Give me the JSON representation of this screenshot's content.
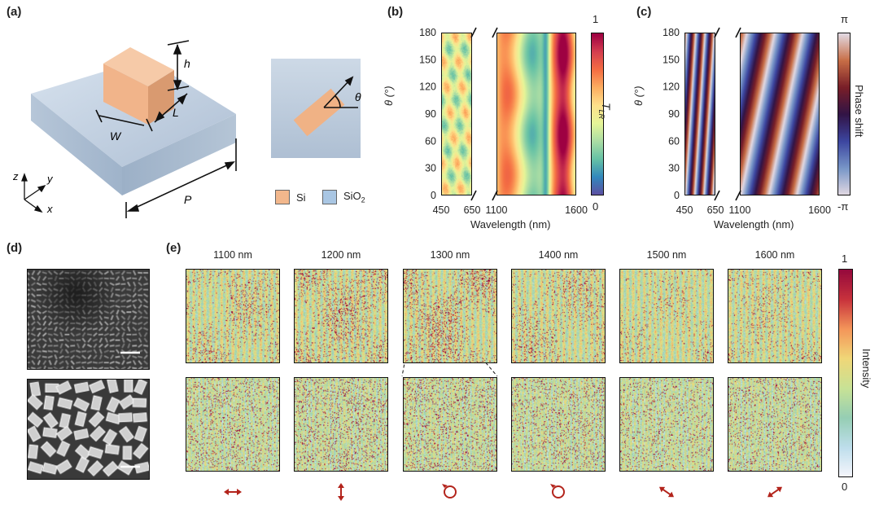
{
  "panel_labels": {
    "a": "(a)",
    "b": "(b)",
    "c": "(c)",
    "d": "(d)",
    "e": "(e)"
  },
  "schematic": {
    "dims": {
      "h": "h",
      "L": "L",
      "W": "W",
      "P": "P",
      "theta": "θ"
    },
    "axes": {
      "z": "z",
      "y": "y",
      "x": "x"
    },
    "legend": [
      {
        "label": "Si",
        "color": "#f2b78c"
      },
      {
        "label": "SiO",
        "sub": "2",
        "color": "#a9c6e3"
      }
    ]
  },
  "panel_b": {
    "ylabel": "θ (°)",
    "xlabel": "Wavelength (nm)",
    "colorbar_label": "T",
    "colorbar_sub": "LR",
    "colorbar_max": "1",
    "colorbar_min": "0"
  },
  "panel_c": {
    "ylabel": "θ (°)",
    "xlabel": "Wavelength (nm)",
    "colorbar_label": "Phase shift",
    "colorbar_max": "π",
    "colorbar_min": "-π"
  },
  "panel_e": {
    "wavelengths": [
      "1100 nm",
      "1200 nm",
      "1300 nm",
      "1400 nm",
      "1500 nm",
      "1600 nm"
    ],
    "colorbar_label": "Intensity",
    "colorbar_max": "1",
    "colorbar_min": "0",
    "polarizations": [
      "horizontal-linear",
      "vertical-linear",
      "circular",
      "circular",
      "diagonal-linear",
      "anti-diagonal-linear"
    ],
    "mark_color": "#b3241c"
  },
  "chart_data": [
    {
      "type": "heatmap",
      "title": "(b)",
      "xlabel": "Wavelength (nm)",
      "ylabel": "θ (°)",
      "colorbar": "T_LR",
      "x_ranges": [
        [
          450,
          650
        ],
        [
          1100,
          1600
        ]
      ],
      "x_ticks": [
        450,
        650,
        1100,
        1600
      ],
      "y_ticks": [
        0,
        30,
        60,
        90,
        120,
        150,
        180
      ],
      "ylim": [
        0,
        180
      ],
      "zlim": [
        0,
        1
      ]
    },
    {
      "type": "heatmap",
      "title": "(c)",
      "xlabel": "Wavelength (nm)",
      "ylabel": "θ (°)",
      "colorbar": "Phase shift",
      "x_ranges": [
        [
          450,
          650
        ],
        [
          1100,
          1600
        ]
      ],
      "x_ticks": [
        450,
        650,
        1100,
        1600
      ],
      "y_ticks": [
        0,
        30,
        60,
        90,
        120,
        150,
        180
      ],
      "ylim": [
        0,
        180
      ],
      "zlim": [
        "-π",
        "π"
      ]
    }
  ]
}
